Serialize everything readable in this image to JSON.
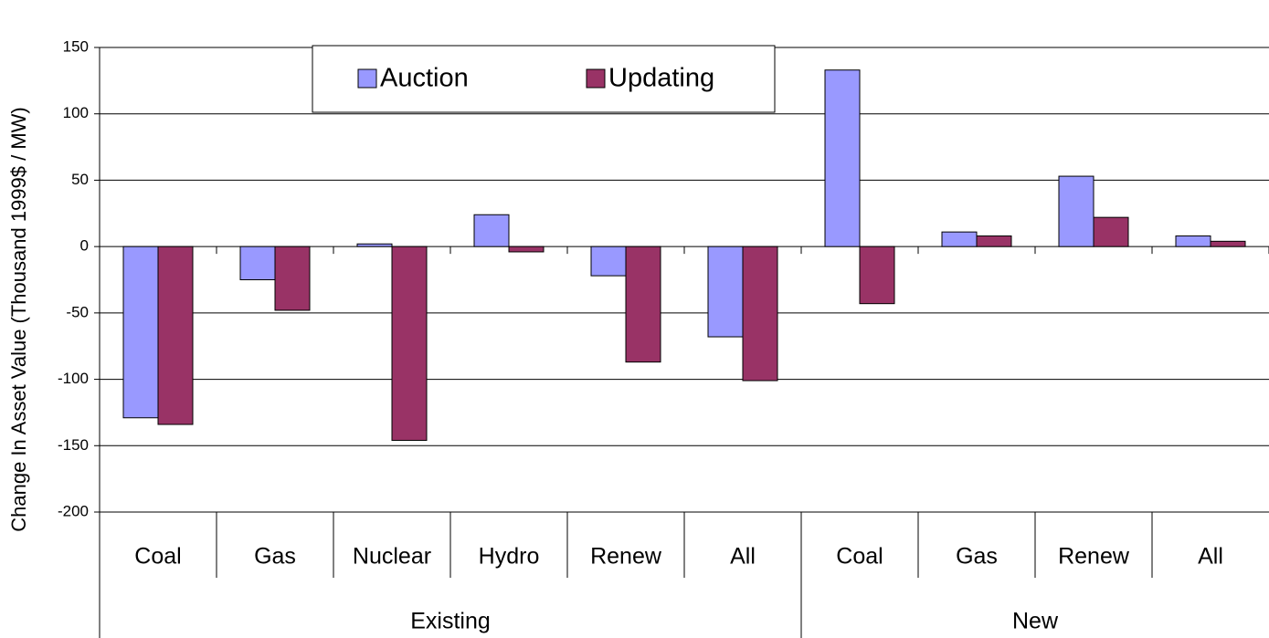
{
  "chart_data": {
    "type": "bar",
    "y_label": "Change In Asset Value (Thousand 1999$ / MW)",
    "groups": [
      {
        "name": "Existing",
        "categories": [
          "Coal",
          "Gas",
          "Nuclear",
          "Hydro",
          "Renew",
          "All"
        ]
      },
      {
        "name": "New",
        "categories": [
          "Coal",
          "Gas",
          "Renew",
          "All"
        ]
      }
    ],
    "series": [
      {
        "name": "Auction",
        "color": "#9999ff",
        "values": [
          -129,
          -25,
          2,
          24,
          -22,
          -68,
          133,
          11,
          53,
          8
        ]
      },
      {
        "name": "Updating",
        "color": "#993366",
        "values": [
          -134,
          -48,
          -146,
          -4,
          -87,
          -101,
          -43,
          8,
          22,
          4
        ]
      }
    ],
    "ylim": [
      -200,
      150
    ],
    "yticks": [
      -200,
      -150,
      -100,
      -50,
      0,
      50,
      100,
      150
    ],
    "grid": true
  }
}
